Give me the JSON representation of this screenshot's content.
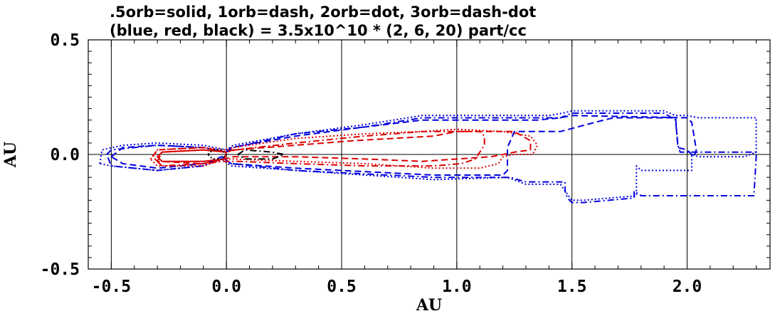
{
  "chart_data": {
    "type": "line",
    "title": ".5orb=solid, 1orb=dash, 2orb=dot, 3orb=dash-dot",
    "subtitle": "(blue, red, black) = 3.5x10^10 * (2, 6, 20) part/cc",
    "xlabel": "AU",
    "ylabel": "AU",
    "xlim": [
      -0.6,
      2.36
    ],
    "ylim": [
      -0.5,
      0.5
    ],
    "xticks": [
      "-0.5",
      "0.0",
      "0.5",
      "1.0",
      "1.5",
      "2.0"
    ],
    "xtick_values": [
      -0.5,
      0.0,
      0.5,
      1.0,
      1.5,
      2.0
    ],
    "yticks": [
      "0.5",
      "0.0",
      "-0.5"
    ],
    "ytick_values": [
      0.5,
      0.0,
      -0.5
    ],
    "grid": true,
    "colors": {
      "blue": "#0000dd",
      "red": "#dd0000",
      "black": "#000000"
    },
    "series": [
      {
        "color": "blue",
        "style": "dash",
        "closed": true,
        "points": [
          [
            -0.5,
            -0.01
          ],
          [
            -0.45,
            0.03
          ],
          [
            -0.3,
            0.04
          ],
          [
            -0.1,
            0.03
          ],
          [
            0.0,
            0.01
          ],
          [
            0.02,
            0.03
          ],
          [
            0.3,
            0.08
          ],
          [
            0.6,
            0.12
          ],
          [
            0.85,
            0.15
          ],
          [
            1.35,
            0.15
          ],
          [
            1.45,
            0.16
          ],
          [
            1.5,
            0.17
          ],
          [
            2.0,
            0.16
          ],
          [
            2.02,
            0.14
          ],
          [
            2.04,
            0.02
          ],
          [
            2.03,
            -0.01
          ],
          [
            2.0,
            0.02
          ],
          [
            1.96,
            0.03
          ],
          [
            1.95,
            0.16
          ],
          [
            1.68,
            0.16
          ],
          [
            1.6,
            0.14
          ],
          [
            1.45,
            0.1
          ],
          [
            1.25,
            0.1
          ],
          [
            1.22,
            0.03
          ],
          [
            1.22,
            -0.07
          ],
          [
            1.2,
            -0.09
          ],
          [
            0.9,
            -0.09
          ],
          [
            0.3,
            -0.06
          ],
          [
            0.02,
            -0.04
          ],
          [
            -0.02,
            -0.01
          ],
          [
            -0.1,
            -0.04
          ],
          [
            -0.3,
            -0.06
          ],
          [
            -0.45,
            -0.04
          ]
        ]
      },
      {
        "color": "blue",
        "style": "dot",
        "closed": true,
        "points": [
          [
            -0.55,
            -0.04
          ],
          [
            -0.54,
            0.02
          ],
          [
            -0.45,
            0.04
          ],
          [
            -0.3,
            0.05
          ],
          [
            -0.1,
            0.04
          ],
          [
            0.0,
            0.02
          ],
          [
            0.03,
            0.04
          ],
          [
            0.3,
            0.09
          ],
          [
            0.6,
            0.13
          ],
          [
            0.85,
            0.17
          ],
          [
            1.4,
            0.17
          ],
          [
            1.46,
            0.18
          ],
          [
            1.5,
            0.19
          ],
          [
            1.9,
            0.19
          ],
          [
            1.95,
            0.17
          ],
          [
            2.0,
            0.17
          ],
          [
            2.05,
            0.16
          ],
          [
            2.3,
            0.16
          ],
          [
            2.3,
            0.01
          ],
          [
            2.25,
            -0.01
          ],
          [
            2.05,
            -0.01
          ],
          [
            2.02,
            0.0
          ],
          [
            2.02,
            -0.07
          ],
          [
            1.8,
            -0.07
          ],
          [
            1.78,
            -0.05
          ],
          [
            1.78,
            -0.18
          ],
          [
            1.55,
            -0.2
          ],
          [
            1.5,
            -0.2
          ],
          [
            1.47,
            -0.16
          ],
          [
            1.45,
            -0.13
          ],
          [
            1.3,
            -0.13
          ],
          [
            1.22,
            -0.1
          ],
          [
            0.9,
            -0.11
          ],
          [
            0.3,
            -0.07
          ],
          [
            0.02,
            -0.05
          ],
          [
            -0.02,
            -0.02
          ],
          [
            -0.1,
            -0.05
          ],
          [
            -0.3,
            -0.07
          ],
          [
            -0.5,
            -0.05
          ]
        ]
      },
      {
        "color": "blue",
        "style": "dash-dot",
        "closed": true,
        "points": [
          [
            -0.52,
            0.0
          ],
          [
            -0.5,
            0.02
          ],
          [
            -0.3,
            0.04
          ],
          [
            -0.1,
            0.03
          ],
          [
            0.0,
            0.01
          ],
          [
            0.03,
            0.03
          ],
          [
            0.3,
            0.09
          ],
          [
            0.6,
            0.12
          ],
          [
            0.85,
            0.16
          ],
          [
            1.45,
            0.16
          ],
          [
            1.5,
            0.18
          ],
          [
            1.8,
            0.18
          ],
          [
            1.9,
            0.18
          ],
          [
            1.95,
            0.15
          ],
          [
            1.96,
            0.04
          ],
          [
            1.97,
            0.01
          ],
          [
            2.3,
            0.01
          ],
          [
            2.3,
            -0.01
          ],
          [
            2.29,
            -0.18
          ],
          [
            1.8,
            -0.18
          ],
          [
            1.77,
            -0.16
          ],
          [
            1.77,
            -0.19
          ],
          [
            1.55,
            -0.21
          ],
          [
            1.5,
            -0.21
          ],
          [
            1.48,
            -0.19
          ],
          [
            1.47,
            -0.16
          ],
          [
            1.47,
            -0.12
          ],
          [
            1.45,
            -0.12
          ],
          [
            1.3,
            -0.12
          ],
          [
            1.23,
            -0.1
          ],
          [
            0.9,
            -0.1
          ],
          [
            0.3,
            -0.07
          ],
          [
            0.02,
            -0.04
          ],
          [
            -0.02,
            -0.01
          ],
          [
            -0.1,
            -0.05
          ],
          [
            -0.3,
            -0.07
          ],
          [
            -0.5,
            -0.05
          ]
        ]
      },
      {
        "color": "red",
        "style": "solid",
        "closed": true,
        "points": [
          [
            -0.3,
            -0.01
          ],
          [
            -0.28,
            0.01
          ],
          [
            -0.1,
            0.02
          ],
          [
            0.0,
            0.01
          ],
          [
            -0.01,
            -0.02
          ],
          [
            -0.1,
            -0.03
          ],
          [
            -0.28,
            -0.03
          ]
        ]
      },
      {
        "color": "red",
        "style": "dash",
        "closed": true,
        "points": [
          [
            -0.32,
            -0.01
          ],
          [
            -0.3,
            0.02
          ],
          [
            -0.1,
            0.03
          ],
          [
            0.0,
            0.01
          ],
          [
            0.03,
            0.02
          ],
          [
            0.3,
            0.04
          ],
          [
            0.55,
            0.06
          ],
          [
            0.9,
            0.08
          ],
          [
            1.0,
            0.1
          ],
          [
            1.25,
            0.1
          ],
          [
            1.32,
            0.06
          ],
          [
            1.32,
            0.02
          ],
          [
            1.25,
            0.01
          ],
          [
            1.15,
            -0.01
          ],
          [
            1.0,
            -0.02
          ],
          [
            0.85,
            -0.03
          ],
          [
            0.6,
            -0.02
          ],
          [
            0.3,
            -0.01
          ],
          [
            0.03,
            -0.01
          ],
          [
            -0.01,
            -0.02
          ],
          [
            -0.1,
            -0.04
          ],
          [
            -0.3,
            -0.03
          ]
        ]
      },
      {
        "color": "red",
        "style": "dot",
        "closed": true,
        "points": [
          [
            -0.33,
            -0.02
          ],
          [
            -0.3,
            0.02
          ],
          [
            -0.1,
            0.03
          ],
          [
            0.0,
            0.02
          ],
          [
            0.03,
            0.03
          ],
          [
            0.3,
            0.07
          ],
          [
            0.6,
            0.09
          ],
          [
            0.85,
            0.1
          ],
          [
            1.0,
            0.11
          ],
          [
            1.2,
            0.1
          ],
          [
            1.32,
            0.08
          ],
          [
            1.35,
            0.04
          ],
          [
            1.33,
            0.0
          ],
          [
            1.25,
            0.0
          ],
          [
            1.2,
            -0.01
          ],
          [
            1.18,
            -0.04
          ],
          [
            1.1,
            -0.06
          ],
          [
            0.9,
            -0.06
          ],
          [
            0.6,
            -0.04
          ],
          [
            0.3,
            -0.03
          ],
          [
            0.03,
            -0.02
          ],
          [
            -0.01,
            -0.02
          ],
          [
            -0.1,
            -0.05
          ],
          [
            -0.3,
            -0.05
          ]
        ]
      },
      {
        "color": "red",
        "style": "dash-dot",
        "closed": true,
        "points": [
          [
            -0.3,
            -0.03
          ],
          [
            -0.28,
            0.01
          ],
          [
            -0.1,
            0.02
          ],
          [
            0.0,
            0.01
          ],
          [
            0.04,
            0.02
          ],
          [
            0.3,
            0.05
          ],
          [
            0.6,
            0.08
          ],
          [
            0.85,
            0.1
          ],
          [
            0.95,
            0.1
          ],
          [
            1.1,
            0.1
          ],
          [
            1.12,
            0.08
          ],
          [
            1.12,
            0.04
          ],
          [
            1.08,
            -0.02
          ],
          [
            1.02,
            -0.04
          ],
          [
            0.9,
            -0.05
          ],
          [
            0.6,
            -0.05
          ],
          [
            0.3,
            -0.04
          ],
          [
            0.05,
            -0.03
          ],
          [
            -0.01,
            -0.03
          ],
          [
            -0.1,
            -0.04
          ],
          [
            -0.28,
            -0.05
          ]
        ]
      },
      {
        "color": "black",
        "style": "dot",
        "closed": true,
        "points": [
          [
            -0.08,
            0.0
          ],
          [
            -0.06,
            0.02
          ],
          [
            -0.02,
            0.02
          ],
          [
            0.0,
            0.0
          ],
          [
            -0.02,
            -0.02
          ],
          [
            -0.06,
            -0.02
          ]
        ]
      },
      {
        "color": "black",
        "style": "dash-dot",
        "closed": true,
        "points": [
          [
            0.05,
            0.0
          ],
          [
            0.08,
            0.02
          ],
          [
            0.2,
            0.01
          ],
          [
            0.25,
            0.0
          ],
          [
            0.2,
            -0.02
          ],
          [
            0.08,
            -0.02
          ]
        ]
      }
    ]
  }
}
